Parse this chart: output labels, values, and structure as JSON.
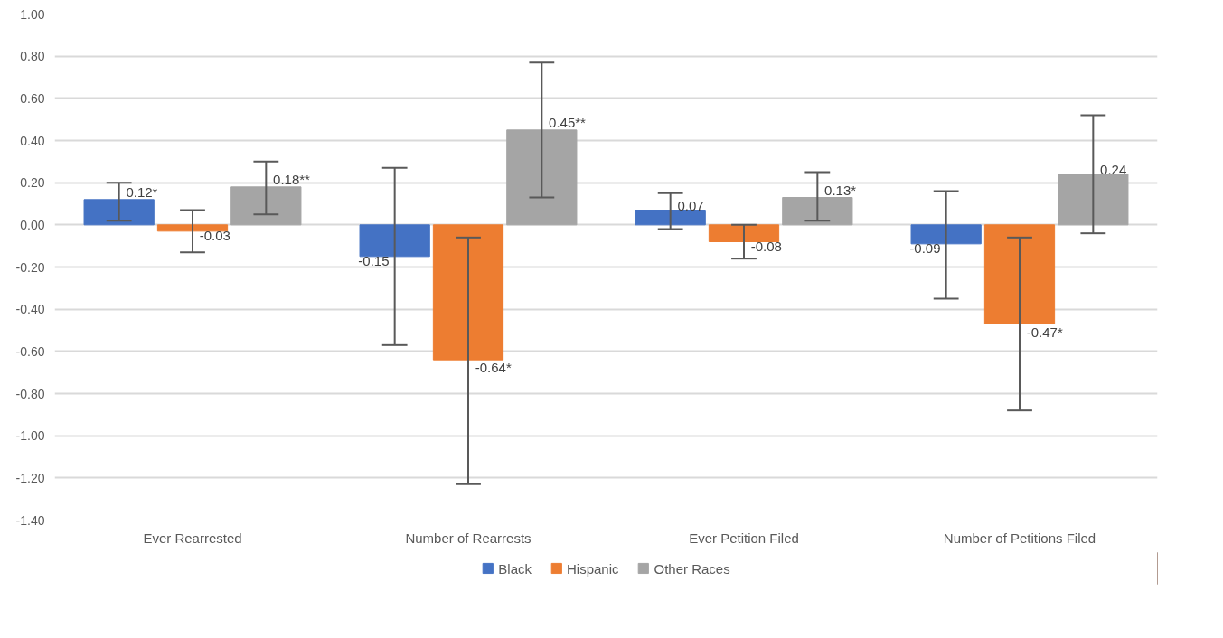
{
  "chart_data": {
    "type": "bar",
    "categories": [
      "Ever Rearrested",
      "Number of Rearrests",
      "Ever Petition Filed",
      "Number of Petitions Filed"
    ],
    "series": [
      {
        "name": "Black",
        "color": "#4472c4",
        "values": [
          0.12,
          -0.15,
          0.07,
          -0.09
        ],
        "value_labels": [
          "0.12*",
          "-0.15",
          "0.07",
          "-0.09"
        ],
        "errors": [
          [
            0.02,
            0.2
          ],
          [
            -0.57,
            0.27
          ],
          [
            -0.02,
            0.15
          ],
          [
            -0.35,
            0.16
          ]
        ]
      },
      {
        "name": "Hispanic",
        "color": "#ed7d31",
        "values": [
          -0.03,
          -0.64,
          -0.08,
          -0.47
        ],
        "value_labels": [
          "-0.03",
          "-0.64*",
          "-0.08",
          "-0.47*"
        ],
        "errors": [
          [
            -0.13,
            0.07
          ],
          [
            -1.23,
            -0.06
          ],
          [
            -0.16,
            0.0
          ],
          [
            -0.88,
            -0.06
          ]
        ]
      },
      {
        "name": "Other Races",
        "color": "#a5a5a5",
        "values": [
          0.18,
          0.45,
          0.13,
          0.24
        ],
        "value_labels": [
          "0.18**",
          "0.45**",
          "0.13*",
          "0.24"
        ],
        "errors": [
          [
            0.05,
            0.3
          ],
          [
            0.13,
            0.77
          ],
          [
            0.02,
            0.25
          ],
          [
            -0.04,
            0.52
          ]
        ]
      }
    ],
    "ylim": [
      -1.4,
      1.0
    ],
    "yticks": [
      {
        "value": -1.4,
        "label": "-1.40"
      },
      {
        "value": -1.2,
        "label": "-1.20"
      },
      {
        "value": -1.0,
        "label": "-1.00"
      },
      {
        "value": -0.8,
        "label": "-0.80"
      },
      {
        "value": -0.6,
        "label": "-0.60"
      },
      {
        "value": -0.4,
        "label": "-0.40"
      },
      {
        "value": -0.2,
        "label": "-0.20"
      },
      {
        "value": 0,
        "label": "0.00"
      },
      {
        "value": 0.2,
        "label": "0.20"
      },
      {
        "value": 0.4,
        "label": "0.40"
      },
      {
        "value": 0.6,
        "label": "0.60"
      },
      {
        "value": 0.8,
        "label": "0.80"
      },
      {
        "value": 1.0,
        "label": "1.00"
      }
    ],
    "grid": "y",
    "legend": "bottom"
  }
}
